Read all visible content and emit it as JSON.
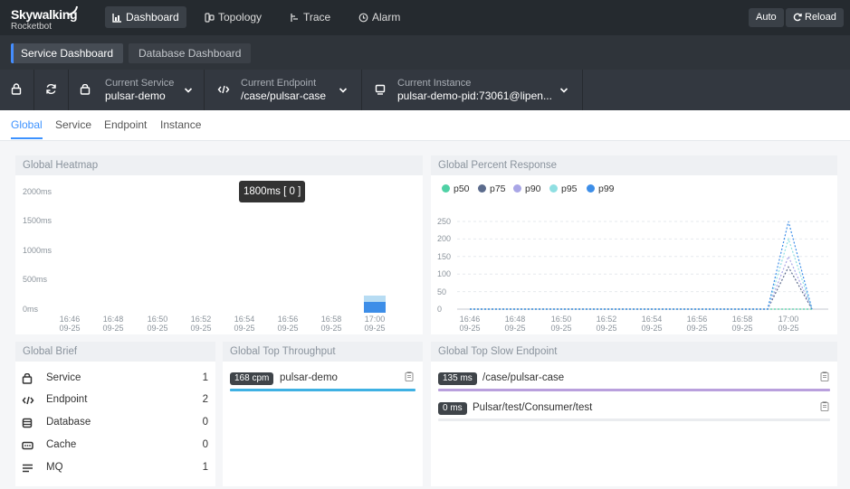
{
  "brand": {
    "name_top": "Skywalking",
    "name_bottom": "Rocketbot"
  },
  "nav": [
    {
      "label": "Dashboard",
      "icon": "dashboard-icon",
      "active": true
    },
    {
      "label": "Topology",
      "icon": "topology-icon",
      "active": false
    },
    {
      "label": "Trace",
      "icon": "trace-icon",
      "active": false
    },
    {
      "label": "Alarm",
      "icon": "alarm-icon",
      "active": false
    }
  ],
  "toolbar": {
    "auto_label": "Auto",
    "reload_label": "Reload"
  },
  "dashboards": [
    {
      "label": "Service Dashboard",
      "active": true
    },
    {
      "label": "Database Dashboard",
      "active": false
    }
  ],
  "selectors": {
    "service": {
      "label": "Current Service",
      "value": "pulsar-demo"
    },
    "endpoint": {
      "label": "Current Endpoint",
      "value": "/case/pulsar-case"
    },
    "instance": {
      "label": "Current Instance",
      "value": "pulsar-demo-pid:73061@lipen..."
    }
  },
  "page_tabs": [
    {
      "label": "Global",
      "active": true
    },
    {
      "label": "Service",
      "active": false
    },
    {
      "label": "Endpoint",
      "active": false
    },
    {
      "label": "Instance",
      "active": false
    }
  ],
  "heatmap": {
    "title": "Global Heatmap",
    "tooltip": "1800ms [ 0 ]",
    "y_ticks": [
      "2000ms",
      "1500ms",
      "1000ms",
      "500ms",
      "0ms"
    ],
    "x_ticks": [
      {
        "time": "16:46",
        "date": "09-25"
      },
      {
        "time": "16:48",
        "date": "09-25"
      },
      {
        "time": "16:50",
        "date": "09-25"
      },
      {
        "time": "16:52",
        "date": "09-25"
      },
      {
        "time": "16:54",
        "date": "09-25"
      },
      {
        "time": "16:56",
        "date": "09-25"
      },
      {
        "time": "16:58",
        "date": "09-25"
      },
      {
        "time": "17:00",
        "date": "09-25"
      }
    ]
  },
  "percent_response": {
    "title": "Global Percent Response",
    "legend": [
      {
        "name": "p50",
        "color": "#4fd1a5"
      },
      {
        "name": "p75",
        "color": "#5b6b8c"
      },
      {
        "name": "p90",
        "color": "#a9a6e6"
      },
      {
        "name": "p95",
        "color": "#8fdfe2"
      },
      {
        "name": "p99",
        "color": "#3d8ee8"
      }
    ],
    "y_ticks": [
      "250",
      "200",
      "150",
      "100",
      "50",
      "0"
    ],
    "x_ticks": [
      {
        "time": "16:46",
        "date": "09-25"
      },
      {
        "time": "16:48",
        "date": "09-25"
      },
      {
        "time": "16:50",
        "date": "09-25"
      },
      {
        "time": "16:52",
        "date": "09-25"
      },
      {
        "time": "16:54",
        "date": "09-25"
      },
      {
        "time": "16:56",
        "date": "09-25"
      },
      {
        "time": "16:58",
        "date": "09-25"
      },
      {
        "time": "17:00",
        "date": "09-25"
      }
    ]
  },
  "chart_data": {
    "type": "line",
    "title": "Global Percent Response",
    "x": [
      "16:46",
      "16:48",
      "16:50",
      "16:52",
      "16:54",
      "16:56",
      "16:58",
      "17:00"
    ],
    "ylim": [
      0,
      250
    ],
    "legend": "top-left",
    "series": [
      {
        "name": "p50",
        "color": "#4fd1a5",
        "peak": 0
      },
      {
        "name": "p75",
        "color": "#5b6b8c",
        "peak": 120
      },
      {
        "name": "p90",
        "color": "#a9a6e6",
        "peak": 150
      },
      {
        "name": "p95",
        "color": "#8fdfe2",
        "peak": 200
      },
      {
        "name": "p99",
        "color": "#3d8ee8",
        "peak": 250
      }
    ]
  },
  "brief": {
    "title": "Global Brief",
    "items": [
      {
        "label": "Service",
        "value": "1",
        "icon": "service-icon"
      },
      {
        "label": "Endpoint",
        "value": "2",
        "icon": "endpoint-icon"
      },
      {
        "label": "Database",
        "value": "0",
        "icon": "database-icon"
      },
      {
        "label": "Cache",
        "value": "0",
        "icon": "cache-icon"
      },
      {
        "label": "MQ",
        "value": "1",
        "icon": "mq-icon"
      }
    ]
  },
  "throughput": {
    "title": "Global Top Throughput",
    "items": [
      {
        "badge": "168 cpm",
        "name": "pulsar-demo",
        "color": "#3fb1e3"
      }
    ]
  },
  "slow_endpoint": {
    "title": "Global Top Slow Endpoint",
    "items": [
      {
        "badge": "135 ms",
        "name": "/case/pulsar-case",
        "color": "#b9a0dd"
      },
      {
        "badge": "0 ms",
        "name": "Pulsar/test/Consumer/test",
        "color": "#eaecef"
      }
    ]
  }
}
